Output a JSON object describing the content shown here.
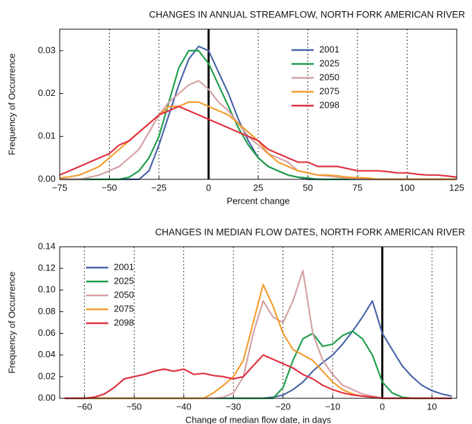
{
  "chart_data": [
    {
      "type": "line",
      "title": "CHANGES IN ANNUAL STREAMFLOW, NORTH FORK AMERICAN RIVER",
      "xlabel": "Percent change",
      "ylabel": "Frequency of Occurrence",
      "x": [
        -75,
        -70,
        -65,
        -60,
        -55,
        -50,
        -45,
        -40,
        -35,
        -30,
        -25,
        -20,
        -15,
        -10,
        -5,
        0,
        5,
        10,
        15,
        20,
        25,
        30,
        35,
        40,
        45,
        50,
        55,
        60,
        65,
        70,
        75,
        80,
        85,
        90,
        95,
        100,
        105,
        110,
        115,
        120,
        125
      ],
      "xlim": [
        -75,
        125
      ],
      "xticks": [
        {
          "value": -75,
          "label": "−75"
        },
        {
          "value": -50,
          "label": "−50"
        },
        {
          "value": -25,
          "label": "−25"
        },
        0,
        25,
        50,
        75,
        100,
        125
      ],
      "ylim": [
        0,
        0.035
      ],
      "yticks": [
        {
          "value": 0,
          "label": "0.00"
        },
        {
          "value": 0.01,
          "label": "0.01"
        },
        {
          "value": 0.02,
          "label": "0.02"
        },
        {
          "value": 0.03,
          "label": "0.03"
        }
      ],
      "grid": true,
      "reference_x": 0,
      "legend": "upper right",
      "series": [
        {
          "name": "2001",
          "color": "#4a64a8",
          "values": [
            0,
            0,
            0,
            0,
            0,
            0,
            0,
            0,
            0,
            0.002,
            0.008,
            0.015,
            0.022,
            0.028,
            0.031,
            0.03,
            0.025,
            0.02,
            0.014,
            0.009,
            0.005,
            0.003,
            0.002,
            0.001,
            0.0005,
            0,
            0,
            0,
            0,
            0,
            0,
            0,
            0,
            0,
            0,
            0,
            0,
            0,
            0,
            0,
            0
          ]
        },
        {
          "name": "2025",
          "color": "#1e9e4a",
          "values": [
            0,
            0,
            0,
            0,
            0,
            0,
            0,
            0.0005,
            0.002,
            0.005,
            0.01,
            0.018,
            0.026,
            0.03,
            0.03,
            0.027,
            0.022,
            0.017,
            0.012,
            0.008,
            0.005,
            0.003,
            0.002,
            0.001,
            0.0005,
            0.0003,
            0,
            0,
            0,
            0,
            0,
            0,
            0,
            0,
            0,
            0,
            0,
            0,
            0,
            0,
            0
          ]
        },
        {
          "name": "2050",
          "color": "#d4a0a4",
          "values": [
            0,
            0,
            0,
            0.0005,
            0.001,
            0.002,
            0.003,
            0.005,
            0.007,
            0.011,
            0.015,
            0.018,
            0.02,
            0.022,
            0.023,
            0.021,
            0.018,
            0.016,
            0.013,
            0.01,
            0.008,
            0.006,
            0.005,
            0.004,
            0.002,
            0.0015,
            0.001,
            0.0008,
            0.0005,
            0.0003,
            0,
            0,
            0,
            0,
            0,
            0,
            0,
            0,
            0,
            0,
            0
          ]
        },
        {
          "name": "2075",
          "color": "#f39c2e",
          "values": [
            0.0003,
            0.0006,
            0.001,
            0.002,
            0.003,
            0.005,
            0.007,
            0.009,
            0.011,
            0.013,
            0.015,
            0.017,
            0.017,
            0.018,
            0.018,
            0.017,
            0.016,
            0.015,
            0.013,
            0.011,
            0.009,
            0.006,
            0.004,
            0.003,
            0.002,
            0.0015,
            0.001,
            0.001,
            0.0008,
            0.0005,
            0.0004,
            0.0003,
            0,
            0,
            0,
            0,
            0,
            0,
            0,
            0,
            0
          ]
        },
        {
          "name": "2098",
          "color": "#e03040",
          "values": [
            0.001,
            0.002,
            0.003,
            0.004,
            0.005,
            0.006,
            0.008,
            0.009,
            0.011,
            0.013,
            0.015,
            0.016,
            0.017,
            0.016,
            0.015,
            0.014,
            0.013,
            0.012,
            0.011,
            0.01,
            0.009,
            0.007,
            0.006,
            0.005,
            0.004,
            0.004,
            0.003,
            0.003,
            0.003,
            0.0025,
            0.002,
            0.002,
            0.002,
            0.0018,
            0.0015,
            0.0015,
            0.0012,
            0.001,
            0.001,
            0.0008,
            0.0005
          ]
        }
      ]
    },
    {
      "type": "line",
      "title": "CHANGES IN MEDIAN  FLOW DATES, NORTH FORK AMERICAN RIVER",
      "xlabel": "Change of median  flow date, in days",
      "ylabel": "Frequency of Occurrence",
      "x": [
        -64,
        -62,
        -60,
        -58,
        -56,
        -54,
        -52,
        -50,
        -48,
        -46,
        -44,
        -42,
        -40,
        -38,
        -36,
        -34,
        -32,
        -30,
        -28,
        -26,
        -24,
        -22,
        -20,
        -18,
        -16,
        -14,
        -12,
        -10,
        -8,
        -6,
        -4,
        -2,
        0,
        2,
        4,
        6,
        8,
        10,
        12,
        14
      ],
      "xlim": [
        -65,
        15
      ],
      "xticks": [
        {
          "value": -60,
          "label": "−60"
        },
        {
          "value": -50,
          "label": "−50"
        },
        {
          "value": -40,
          "label": "−40"
        },
        {
          "value": -30,
          "label": "−30"
        },
        {
          "value": -20,
          "label": "−20"
        },
        {
          "value": -10,
          "label": "−10"
        },
        0,
        10
      ],
      "ylim": [
        0,
        0.14
      ],
      "yticks": [
        {
          "value": 0,
          "label": "0.00"
        },
        {
          "value": 0.02,
          "label": "0.02"
        },
        {
          "value": 0.04,
          "label": "0.04"
        },
        {
          "value": 0.06,
          "label": "0.06"
        },
        {
          "value": 0.08,
          "label": "0.08"
        },
        {
          "value": 0.1,
          "label": "0.10"
        },
        {
          "value": 0.12,
          "label": "0.12"
        },
        {
          "value": 0.14,
          "label": "0.14"
        }
      ],
      "grid": true,
      "reference_x": 0,
      "legend": "upper left",
      "series": [
        {
          "name": "2001",
          "color": "#4a64a8",
          "values": [
            0,
            0,
            0,
            0,
            0,
            0,
            0,
            0,
            0,
            0,
            0,
            0,
            0,
            0,
            0,
            0,
            0,
            0,
            0,
            0,
            0,
            0.001,
            0.003,
            0.008,
            0.015,
            0.025,
            0.033,
            0.04,
            0.05,
            0.062,
            0.075,
            0.09,
            0.06,
            0.045,
            0.03,
            0.02,
            0.012,
            0.007,
            0.004,
            0.002
          ]
        },
        {
          "name": "2025",
          "color": "#1e9e4a",
          "values": [
            0,
            0,
            0,
            0,
            0,
            0,
            0,
            0,
            0,
            0,
            0,
            0,
            0,
            0,
            0,
            0,
            0,
            0,
            0,
            0,
            0,
            0,
            0.01,
            0.035,
            0.055,
            0.06,
            0.048,
            0.05,
            0.058,
            0.062,
            0.055,
            0.04,
            0.015,
            0.005,
            0.001,
            0,
            0,
            0,
            0,
            0
          ]
        },
        {
          "name": "2050",
          "color": "#d4a0a4",
          "values": [
            0,
            0,
            0,
            0,
            0,
            0,
            0,
            0,
            0,
            0,
            0,
            0,
            0,
            0,
            0,
            0,
            0.001,
            0.005,
            0.02,
            0.06,
            0.09,
            0.075,
            0.07,
            0.09,
            0.118,
            0.06,
            0.035,
            0.022,
            0.012,
            0.008,
            0.004,
            0.002,
            0,
            0,
            0,
            0,
            0,
            0,
            0,
            0
          ]
        },
        {
          "name": "2075",
          "color": "#f39c2e",
          "values": [
            0,
            0,
            0,
            0,
            0,
            0,
            0,
            0,
            0,
            0,
            0,
            0,
            0,
            0,
            0,
            0.005,
            0.012,
            0.02,
            0.035,
            0.07,
            0.105,
            0.085,
            0.06,
            0.045,
            0.04,
            0.035,
            0.025,
            0.015,
            0.008,
            0.004,
            0.002,
            0.001,
            0,
            0,
            0,
            0,
            0,
            0,
            0,
            0
          ]
        },
        {
          "name": "2098",
          "color": "#e03040",
          "values": [
            0,
            0,
            0,
            0.001,
            0.004,
            0.01,
            0.018,
            0.02,
            0.022,
            0.025,
            0.027,
            0.025,
            0.027,
            0.022,
            0.023,
            0.021,
            0.02,
            0.018,
            0.02,
            0.03,
            0.04,
            0.036,
            0.032,
            0.028,
            0.022,
            0.018,
            0.012,
            0.008,
            0.005,
            0.003,
            0.002,
            0.001,
            0,
            0,
            0,
            0,
            0,
            0,
            0,
            0
          ]
        }
      ]
    }
  ]
}
